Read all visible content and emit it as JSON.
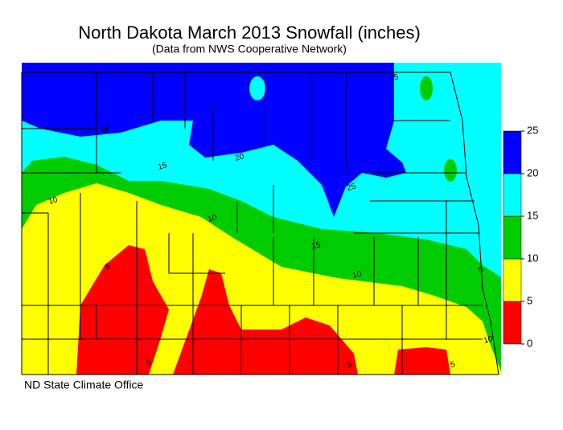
{
  "title": "North Dakota March 2013 Snowfall (inches)",
  "subtitle": "(Data from NWS Cooperative Network)",
  "credit": "ND State Climate Office",
  "legend": {
    "ticks": [
      0,
      5,
      10,
      15,
      20,
      25
    ],
    "colors": [
      "#ff0000",
      "#ffff00",
      "#00cc00",
      "#00ffff",
      "#0000ff"
    ]
  },
  "contours": [
    15,
    20,
    20,
    15,
    25,
    10,
    10,
    15,
    10,
    5,
    5,
    5,
    5,
    5,
    10
  ]
}
